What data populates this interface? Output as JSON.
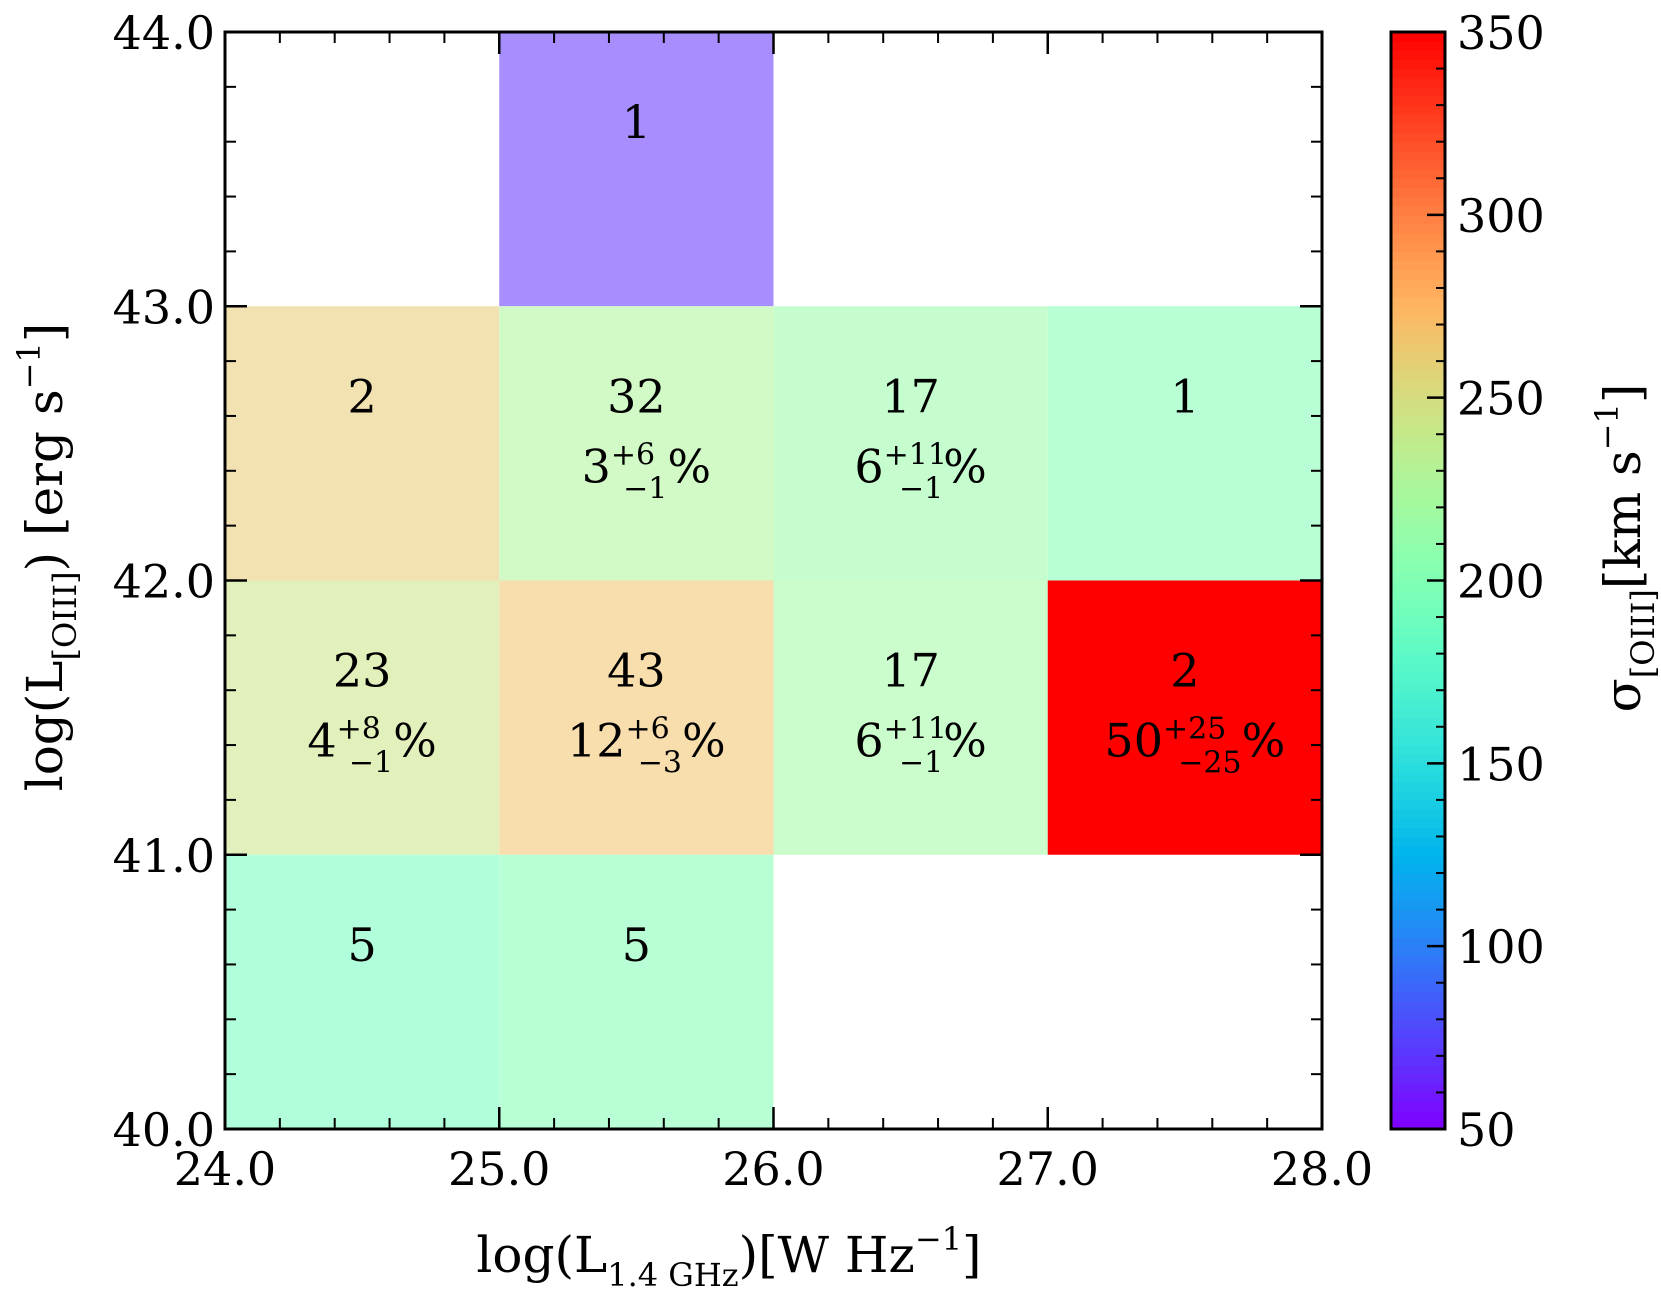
{
  "chart_data": {
    "type": "heatmap",
    "title": "",
    "xlabel": {
      "prefix": "log(L",
      "subscript": "1.4 GHz",
      "suffix": ")[W Hz",
      "superscript": "−1",
      "close": "]"
    },
    "ylabel": {
      "prefix": "log(L",
      "subscript": "[OIII]",
      "suffix": ") [erg s",
      "superscript": "−1",
      "close": "]"
    },
    "xlim": [
      24.0,
      28.0
    ],
    "ylim": [
      40.0,
      44.0
    ],
    "x_ticks": [
      "24.0",
      "25.0",
      "26.0",
      "27.0",
      "28.0"
    ],
    "y_ticks": [
      "40.0",
      "41.0",
      "42.0",
      "43.0",
      "44.0"
    ],
    "colorbar": {
      "label_symbol": "σ",
      "label_subscript": "[OIII]",
      "label_units": "[km s",
      "label_superscript": "−1",
      "label_close": "]",
      "range": [
        50,
        350
      ],
      "ticks": [
        "50",
        "100",
        "150",
        "200",
        "250",
        "300",
        "350"
      ],
      "colormap": "rainbow"
    },
    "cells": [
      {
        "x": [
          25,
          26
        ],
        "y": [
          43,
          44
        ],
        "sigma": 68,
        "count": "1",
        "frac": null
      },
      {
        "x": [
          24,
          25
        ],
        "y": [
          42,
          43
        ],
        "sigma": 262,
        "count": "2",
        "frac": null
      },
      {
        "x": [
          25,
          26
        ],
        "y": [
          42,
          43
        ],
        "sigma": 226,
        "count": "32",
        "frac": {
          "base": "3",
          "sup": "+6",
          "sub": "−1",
          "pct": "%"
        }
      },
      {
        "x": [
          26,
          27
        ],
        "y": [
          42,
          43
        ],
        "sigma": 214,
        "count": "17",
        "frac": {
          "base": "6",
          "sup": "+11",
          "sub": "−1",
          "pct": "%"
        }
      },
      {
        "x": [
          27,
          28
        ],
        "y": [
          42,
          43
        ],
        "sigma": 200,
        "count": "1",
        "frac": null
      },
      {
        "x": [
          24,
          25
        ],
        "y": [
          41,
          42
        ],
        "sigma": 244,
        "count": "23",
        "frac": {
          "base": "4",
          "sup": "+8",
          "sub": "−1",
          "pct": "%"
        }
      },
      {
        "x": [
          25,
          26
        ],
        "y": [
          41,
          42
        ],
        "sigma": 268,
        "count": "43",
        "frac": {
          "base": "12",
          "sup": "+6",
          "sub": "−3",
          "pct": "%"
        }
      },
      {
        "x": [
          26,
          27
        ],
        "y": [
          41,
          42
        ],
        "sigma": 218,
        "count": "17",
        "frac": {
          "base": "6",
          "sup": "+11",
          "sub": "−1",
          "pct": "%"
        }
      },
      {
        "x": [
          27,
          28
        ],
        "y": [
          41,
          42
        ],
        "sigma": 350,
        "count": "2",
        "frac": {
          "base": "50",
          "sup": "+25",
          "sub": "−25",
          "pct": "%"
        }
      },
      {
        "x": [
          24,
          25
        ],
        "y": [
          40,
          41
        ],
        "sigma": 192,
        "count": "5",
        "frac": null
      },
      {
        "x": [
          25,
          26
        ],
        "y": [
          40,
          41
        ],
        "sigma": 200,
        "count": "5",
        "frac": null
      }
    ]
  }
}
